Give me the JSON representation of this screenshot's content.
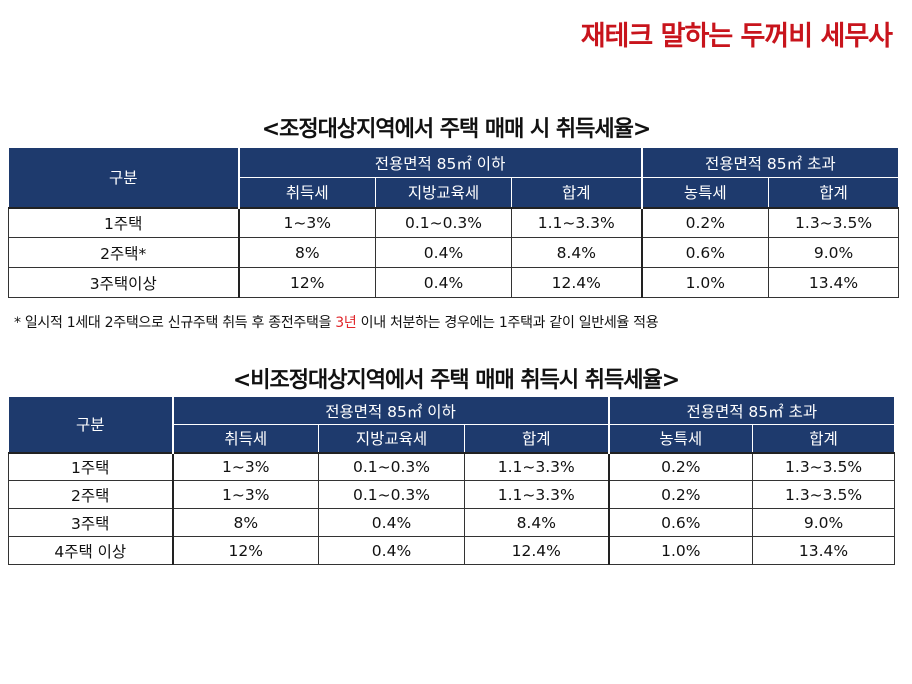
{
  "brand": "재테크 말하는 두꺼비 세무사",
  "section1": {
    "title": "<조정대상지역에서 주택 매매 시 취득세율>",
    "header": {
      "category": "구분",
      "group_under": "전용면적 85㎡ 이하",
      "group_over": "전용면적 85㎡ 초과",
      "cols": [
        "취득세",
        "지방교육세",
        "합계",
        "농특세",
        "합계"
      ]
    },
    "rows": [
      {
        "label": "1주택",
        "values": [
          "1~3%",
          "0.1~0.3%",
          "1.1~3.3%",
          "0.2%",
          "1.3~3.5%"
        ]
      },
      {
        "label": "2주택*",
        "values": [
          "8%",
          "0.4%",
          "8.4%",
          "0.6%",
          "9.0%"
        ]
      },
      {
        "label": "3주택이상",
        "values": [
          "12%",
          "0.4%",
          "12.4%",
          "1.0%",
          "13.4%"
        ]
      }
    ],
    "footnote": {
      "before": "* 일시적 1세대 2주택으로 신규주택 취득 후 종전주택을 ",
      "highlight": "3년",
      "after": " 이내 처분하는 경우에는 1주택과 같이 일반세율 적용",
      "highlight_color": "#e0262b"
    }
  },
  "section2": {
    "title": "<비조정대상지역에서 주택 매매 취득시 취득세율>",
    "header": {
      "category": "구분",
      "group_under": "전용면적 85㎡ 이하",
      "group_over": "전용면적 85㎡ 초과",
      "cols": [
        "취득세",
        "지방교육세",
        "합계",
        "농특세",
        "합계"
      ]
    },
    "rows": [
      {
        "label": "1주택",
        "values": [
          "1~3%",
          "0.1~0.3%",
          "1.1~3.3%",
          "0.2%",
          "1.3~3.5%"
        ]
      },
      {
        "label": "2주택",
        "values": [
          "1~3%",
          "0.1~0.3%",
          "1.1~3.3%",
          "0.2%",
          "1.3~3.5%"
        ]
      },
      {
        "label": "3주택",
        "values": [
          "8%",
          "0.4%",
          "8.4%",
          "0.6%",
          "9.0%"
        ]
      },
      {
        "label": "4주택 이상",
        "values": [
          "12%",
          "0.4%",
          "12.4%",
          "1.0%",
          "13.4%"
        ]
      }
    ]
  },
  "colors": {
    "brand": "#c8141c",
    "header_bg": "#1e3a6d",
    "header_text": "#ffffff"
  }
}
